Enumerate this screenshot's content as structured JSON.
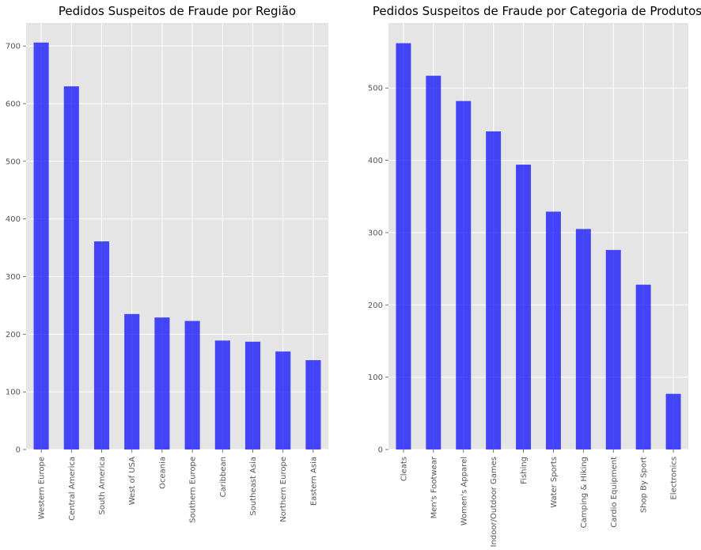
{
  "chart_data": [
    {
      "type": "bar",
      "title": "Pedidos Suspeitos de Fraude por Região",
      "xlabel": "",
      "ylabel": "",
      "ylim": [
        0,
        740
      ],
      "yticks": [
        0,
        100,
        200,
        300,
        400,
        500,
        600,
        700
      ],
      "grid": true,
      "color": "#0000ff",
      "categories": [
        "Western Europe",
        "Central America",
        "South America",
        "West of USA",
        "Oceania",
        "Southern Europe",
        "Caribbean",
        "Southeast Asia",
        "Northern Europe",
        "Eastern Asia"
      ],
      "values": [
        706,
        630,
        361,
        235,
        229,
        223,
        189,
        187,
        170,
        155
      ]
    },
    {
      "type": "bar",
      "title": "Pedidos Suspeitos de Fraude por Categoria de Produtos",
      "xlabel": "",
      "ylabel": "",
      "ylim": [
        0,
        590
      ],
      "yticks": [
        0,
        100,
        200,
        300,
        400,
        500
      ],
      "grid": true,
      "color": "#0000ff",
      "categories": [
        "Cleats",
        "Men's Footwear",
        "Women's Apparel",
        "Indoor/Outdoor Games",
        "Fishing",
        "Water Sports",
        "Camping & Hiking",
        "Cardio Equipment",
        "Shop By Sport",
        "Electronics"
      ],
      "values": [
        562,
        517,
        482,
        440,
        394,
        329,
        305,
        276,
        228,
        77
      ]
    }
  ]
}
